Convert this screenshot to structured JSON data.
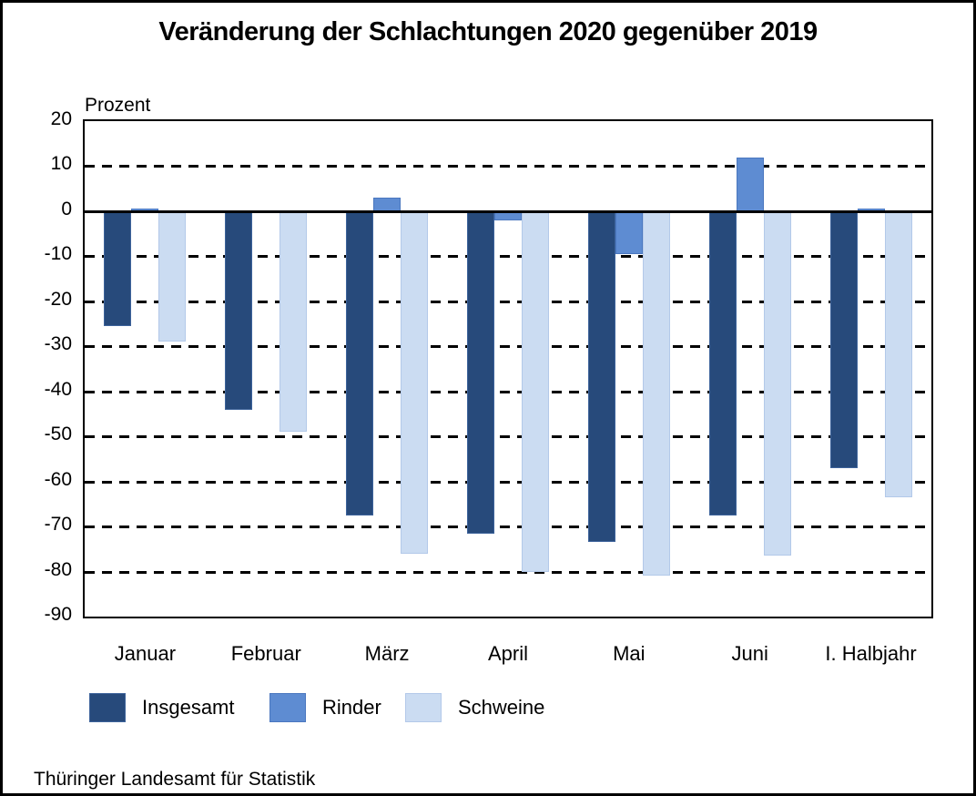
{
  "title": "Veränderung der Schlachtungen 2020 gegenüber 2019",
  "source": "Thüringer Landesamt für Statistik",
  "chart_data": {
    "type": "bar",
    "title": "Veränderung der Schlachtungen 2020 gegenüber 2019",
    "ylabel": "Prozent",
    "xlabel": "",
    "categories": [
      "Januar",
      "Februar",
      "März",
      "April",
      "Mai",
      "Juni",
      "I. Halbjahr"
    ],
    "series": [
      {
        "name": "Insgesamt",
        "color": "#274A7B",
        "edge_color": "#3D639B",
        "values": [
          -25.5,
          -44,
          -67.5,
          -71.5,
          -73.5,
          -67.5,
          -57
        ]
      },
      {
        "name": "Rinder",
        "color": "#5E8CD2",
        "edge_color": "#4A77BF",
        "values": [
          0.5,
          0,
          3,
          -2,
          -9.5,
          12,
          0.5
        ]
      },
      {
        "name": "Schweine",
        "color": "#CBDCF2",
        "edge_color": "#B3C9E9",
        "values": [
          -29,
          -49,
          -76,
          -80,
          -81,
          -76.5,
          -63.5
        ]
      }
    ],
    "ylim": [
      -90,
      20
    ],
    "yticks": [
      20,
      10,
      0,
      -10,
      -20,
      -30,
      -40,
      -50,
      -60,
      -70,
      -80,
      -90
    ],
    "grid": "horizontal-dashed",
    "zero_line_solid": true,
    "legend_position": "bottom",
    "background": "#ffffff"
  }
}
